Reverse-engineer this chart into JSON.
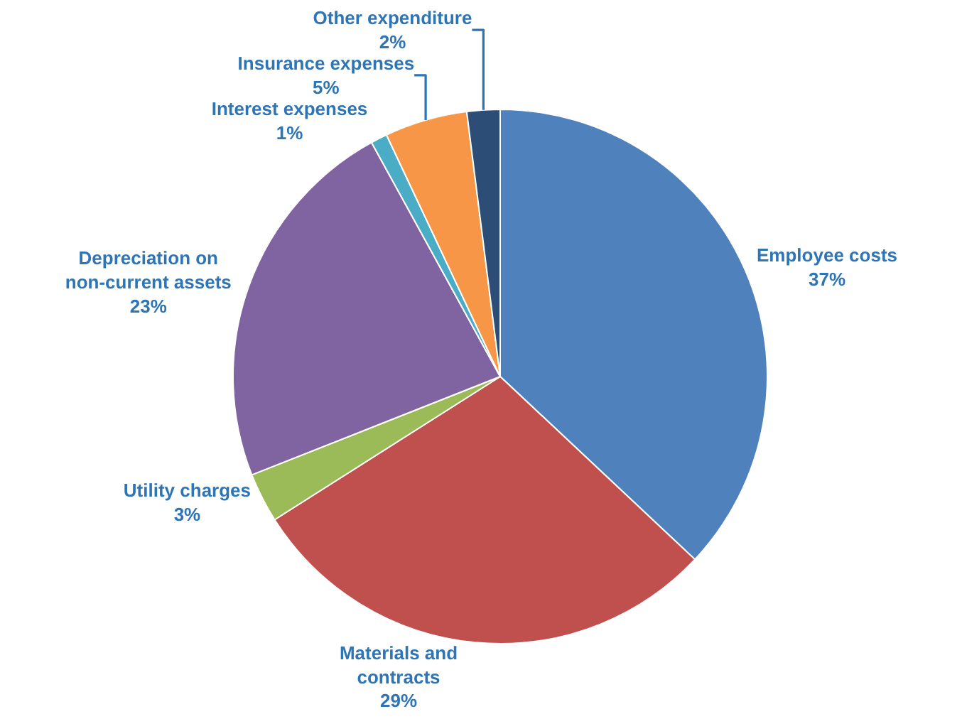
{
  "chart_data": {
    "type": "pie",
    "categories": [
      "Employee costs",
      "Materials and contracts",
      "Utility charges",
      "Depreciation on non-current assets",
      "Interest expenses",
      "Insurance expenses",
      "Other expenditure"
    ],
    "values": [
      37,
      29,
      3,
      23,
      1,
      5,
      2
    ],
    "value_labels": [
      "37%",
      "29%",
      "3%",
      "23%",
      "1%",
      "5%",
      "2%"
    ],
    "colors": [
      "#4f81bd",
      "#c0504d",
      "#9bbb59",
      "#8064a2",
      "#4bacc6",
      "#f79646",
      "#2c4d75"
    ],
    "legend": false
  }
}
